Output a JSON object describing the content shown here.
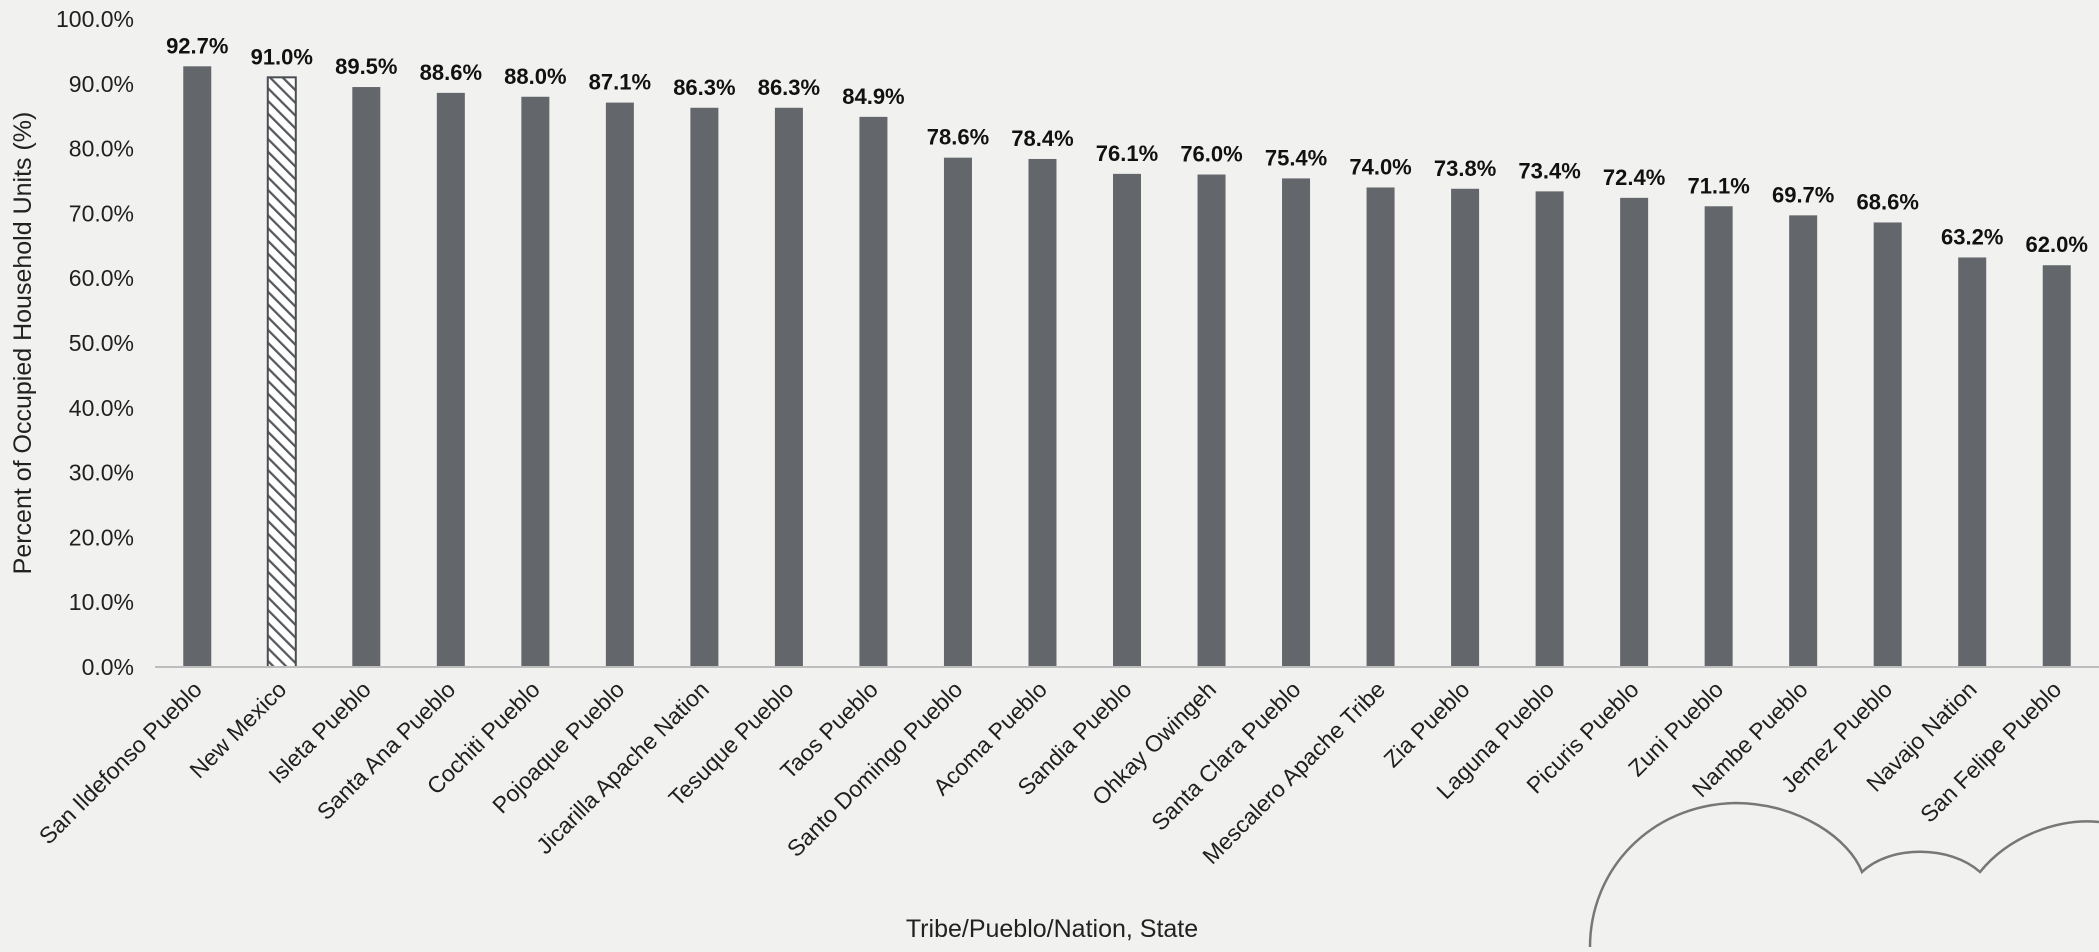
{
  "chart_data": {
    "type": "bar",
    "title": "",
    "xlabel": "Tribe/Pueblo/Nation, State",
    "ylabel": "Percent of Occupied Household Units (%)",
    "ylim": [
      0,
      100
    ],
    "y_ticks": [
      "0.0%",
      "10.0%",
      "20.0%",
      "30.0%",
      "40.0%",
      "50.0%",
      "60.0%",
      "70.0%",
      "80.0%",
      "90.0%",
      "100.0%"
    ],
    "grid": false,
    "legend": "none",
    "categories": [
      "San Ildefonso Pueblo",
      "New Mexico",
      "Isleta Pueblo",
      "Santa Ana Pueblo",
      "Cochiti Pueblo",
      "Pojoaque Pueblo",
      "Jicarilla Apache Nation",
      "Tesuque Pueblo",
      "Taos Pueblo",
      "Santo Domingo Pueblo",
      "Acoma Pueblo",
      "Sandia Pueblo",
      "Ohkay Owingeh",
      "Santa Clara Pueblo",
      "Mescalero Apache Tribe",
      "Zia Pueblo",
      "Laguna Pueblo",
      "Picuris Pueblo",
      "Zuni Pueblo",
      "Nambe Pueblo",
      "Jemez Pueblo",
      "Navajo Nation",
      "San Felipe Pueblo"
    ],
    "values": [
      92.7,
      91.0,
      89.5,
      88.6,
      88.0,
      87.1,
      86.3,
      86.3,
      84.9,
      78.6,
      78.4,
      76.1,
      76.0,
      75.4,
      74.0,
      73.8,
      73.4,
      72.4,
      71.1,
      69.7,
      68.6,
      63.2,
      62.0
    ],
    "data_labels": [
      "92.7%",
      "91.0%",
      "89.5%",
      "88.6%",
      "88.0%",
      "87.1%",
      "86.3%",
      "86.3%",
      "84.9%",
      "78.6%",
      "78.4%",
      "76.1%",
      "76.0%",
      "75.4%",
      "74.0%",
      "73.8%",
      "73.4%",
      "72.4%",
      "71.1%",
      "69.7%",
      "68.6%",
      "63.2%",
      "62.0%"
    ],
    "highlight_category": "New Mexico",
    "colors": {
      "bar": "#63666a",
      "highlight_stroke": "#4a4d52",
      "axis": "#bdbdbd"
    }
  }
}
